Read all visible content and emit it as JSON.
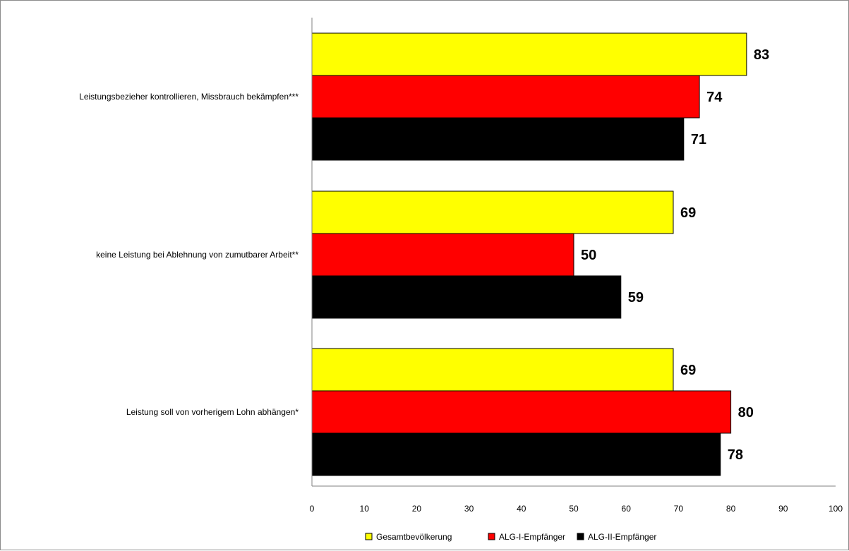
{
  "chart_data": {
    "type": "bar",
    "orientation": "horizontal",
    "categories": [
      "Leistungsbezieher kontrollieren, Missbrauch  bekämpfen***",
      "keine Leistung bei Ablehnung von zumutbarer  Arbeit**",
      "Leistung soll  von vorherigem Lohn abhängen*"
    ],
    "series": [
      {
        "name": "Gesamtbevölkerung",
        "color": "#ffff00",
        "values": [
          83,
          69,
          69
        ]
      },
      {
        "name": "ALG-I-Empfänger",
        "color": "#ff0000",
        "values": [
          74,
          50,
          80
        ]
      },
      {
        "name": "ALG-II-Empfänger",
        "color": "#000000",
        "values": [
          71,
          59,
          78
        ]
      }
    ],
    "xlim": [
      0,
      100
    ],
    "ticks": [
      "0",
      "10",
      "20",
      "30",
      "40",
      "50",
      "60",
      "70",
      "80",
      "90",
      "100"
    ],
    "grid": false,
    "legend_position": "bottom",
    "data_labels": true
  }
}
